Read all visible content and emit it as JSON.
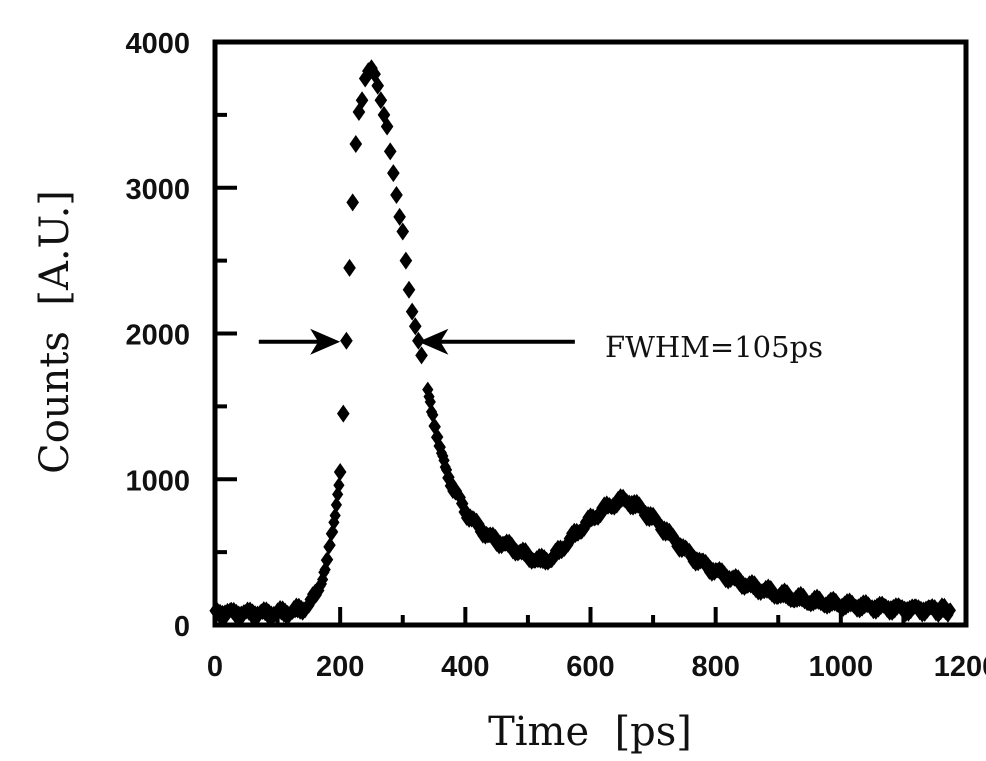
{
  "chart_data": {
    "type": "scatter",
    "title": "",
    "xlabel": "Time  [ps]",
    "ylabel": "Counts  [A.U.]",
    "xlim": [
      0,
      1200
    ],
    "ylim": [
      0,
      4000
    ],
    "x_ticks": [
      0,
      200,
      400,
      600,
      800,
      1000,
      1200
    ],
    "x_tick_labels": [
      "0",
      "200",
      "400",
      "600",
      "800",
      "1000",
      "1200"
    ],
    "x_minor_ticks": [
      100,
      300,
      500,
      700,
      900,
      1100
    ],
    "y_ticks": [
      0,
      1000,
      2000,
      3000,
      4000
    ],
    "y_tick_labels": [
      "0",
      "1000",
      "2000",
      "3000",
      "4000"
    ],
    "y_minor_ticks": [
      500,
      1500,
      2500,
      3500
    ],
    "grid": false,
    "legend": null,
    "marker": "diamond",
    "series": [
      {
        "name": "counts",
        "x": [
          0,
          20,
          40,
          60,
          80,
          100,
          120,
          140,
          150,
          160,
          170,
          180,
          190,
          200,
          205,
          210,
          215,
          220,
          225,
          230,
          235,
          240,
          245,
          250,
          255,
          260,
          265,
          270,
          275,
          280,
          285,
          290,
          295,
          300,
          305,
          310,
          315,
          320,
          325,
          330,
          340,
          350,
          360,
          370,
          380,
          390,
          400,
          420,
          440,
          460,
          480,
          500,
          520,
          540,
          560,
          580,
          600,
          620,
          640,
          650,
          660,
          680,
          700,
          720,
          740,
          760,
          780,
          800,
          830,
          860,
          900,
          950,
          1000,
          1050,
          1100,
          1150,
          1175
        ],
        "y": [
          80,
          85,
          78,
          82,
          80,
          84,
          90,
          110,
          140,
          200,
          300,
          450,
          700,
          1050,
          1450,
          1950,
          2450,
          2900,
          3300,
          3520,
          3600,
          3750,
          3800,
          3820,
          3780,
          3700,
          3600,
          3500,
          3420,
          3250,
          3100,
          2950,
          2800,
          2700,
          2500,
          2300,
          2150,
          2050,
          1950,
          1850,
          1600,
          1400,
          1200,
          1050,
          950,
          870,
          780,
          680,
          600,
          560,
          520,
          470,
          440,
          460,
          550,
          640,
          720,
          790,
          840,
          855,
          850,
          800,
          730,
          650,
          560,
          480,
          420,
          370,
          310,
          260,
          210,
          165,
          140,
          125,
          110,
          105,
          100
        ]
      }
    ],
    "annotations": [
      {
        "text": "FWHM=105ps",
        "type": "double-arrow-inward",
        "y": 1930,
        "left_arrow": {
          "from_x": 70,
          "to_x": 200
        },
        "right_arrow": {
          "from_x": 575,
          "to_x": 325
        }
      }
    ]
  }
}
